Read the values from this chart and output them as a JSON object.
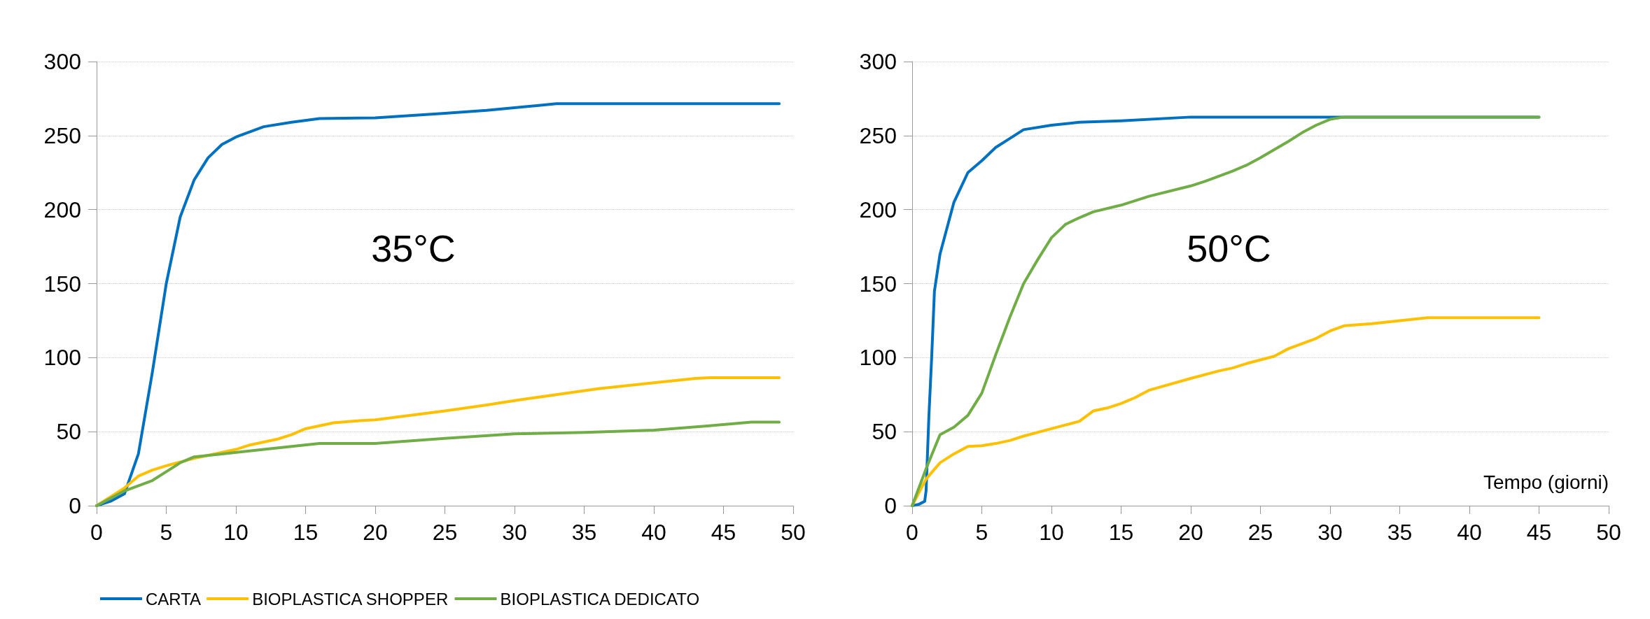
{
  "chart_data": [
    {
      "type": "line",
      "annotations": [
        "35°C"
      ],
      "xlim": [
        0,
        50
      ],
      "xticks": [
        0,
        5,
        10,
        15,
        20,
        25,
        30,
        35,
        40,
        45,
        50
      ],
      "ylim": [
        0,
        300
      ],
      "yticks": [
        0,
        50,
        100,
        150,
        200,
        250,
        300
      ],
      "grid": "y",
      "legend": "bottom left",
      "marker": "none",
      "line_style": "solid",
      "series": [
        {
          "name": "CARTA",
          "color": "#0070c0",
          "x": [
            0,
            1,
            2,
            3,
            4,
            5,
            6,
            7,
            8,
            9,
            10,
            12,
            14,
            16,
            20,
            25,
            28,
            33,
            49
          ],
          "values": [
            0,
            3,
            8,
            35,
            90,
            150,
            195,
            220,
            235,
            244,
            249,
            256,
            259,
            261.5,
            262,
            265,
            267,
            271.5,
            271.5
          ]
        },
        {
          "name": "BIOPLASTICA SHOPPER",
          "color": "#ffc000",
          "x": [
            0,
            2,
            3,
            4,
            5,
            7,
            10,
            11,
            13,
            14,
            15,
            17,
            19,
            20,
            25,
            28,
            30,
            33,
            36,
            40,
            43,
            44,
            49
          ],
          "values": [
            0,
            12,
            20,
            24,
            27,
            32,
            38,
            41,
            45,
            48,
            52,
            56,
            57.5,
            58,
            64,
            68,
            71,
            75,
            79,
            83,
            86,
            86.5,
            86.5
          ]
        },
        {
          "name": "BIOPLASTICA DEDICATO",
          "color": "#70ad47",
          "x": [
            0,
            2,
            4,
            5,
            6,
            7,
            9,
            12,
            14,
            16,
            20,
            25,
            30,
            35,
            40,
            44,
            47,
            49
          ],
          "values": [
            0,
            10,
            17,
            23,
            29,
            33,
            35,
            38,
            40,
            42,
            42,
            45.5,
            48.5,
            49.5,
            51,
            54,
            56.5,
            56.5
          ]
        }
      ]
    },
    {
      "type": "line",
      "annotations": [
        "50°C"
      ],
      "xlabel": "Tempo (giorni)",
      "xlim": [
        0,
        50
      ],
      "xticks": [
        0,
        5,
        10,
        15,
        20,
        25,
        30,
        35,
        40,
        45,
        50
      ],
      "ylim": [
        0,
        300
      ],
      "yticks": [
        0,
        50,
        100,
        150,
        200,
        250,
        300
      ],
      "grid": "y",
      "legend": false,
      "marker": "none",
      "line_style": "solid",
      "series": [
        {
          "color": "#0070c0",
          "x": [
            0,
            0.5,
            0.9,
            1,
            1.2,
            1.4,
            1.6,
            2,
            3,
            4,
            5,
            6,
            7,
            8,
            10,
            12,
            15,
            20,
            45
          ],
          "values": [
            0,
            1,
            3,
            10,
            60,
            100,
            145,
            170,
            205,
            225,
            233,
            242,
            248,
            254,
            257,
            259,
            260,
            262.5,
            262.5
          ]
        },
        {
          "color": "#ffc000",
          "x": [
            0,
            1,
            2,
            3,
            4,
            5,
            6,
            7,
            8,
            10,
            12,
            13,
            14,
            15,
            16,
            17,
            20,
            22,
            23,
            24,
            26,
            27,
            29,
            30,
            31,
            33,
            35,
            37,
            45
          ],
          "values": [
            0,
            18,
            29,
            35,
            40,
            40.5,
            42,
            44,
            47,
            52,
            57,
            64,
            66,
            69,
            73,
            78,
            86,
            91,
            93,
            96,
            101,
            106,
            113,
            118,
            121.5,
            123,
            125,
            127,
            127
          ]
        },
        {
          "color": "#70ad47",
          "x": [
            0,
            1,
            2,
            3,
            4,
            5,
            6,
            7,
            8,
            9,
            10,
            11,
            12,
            13,
            15,
            17,
            20,
            21,
            23,
            24,
            25,
            27,
            28,
            29,
            30,
            31,
            45
          ],
          "values": [
            0,
            25,
            48,
            53,
            61,
            76,
            102,
            127,
            150,
            166,
            181,
            190,
            194.5,
            198.5,
            203,
            209,
            216,
            219,
            226,
            230,
            235,
            246,
            252,
            257,
            261,
            262.5,
            262.5
          ]
        }
      ]
    }
  ]
}
